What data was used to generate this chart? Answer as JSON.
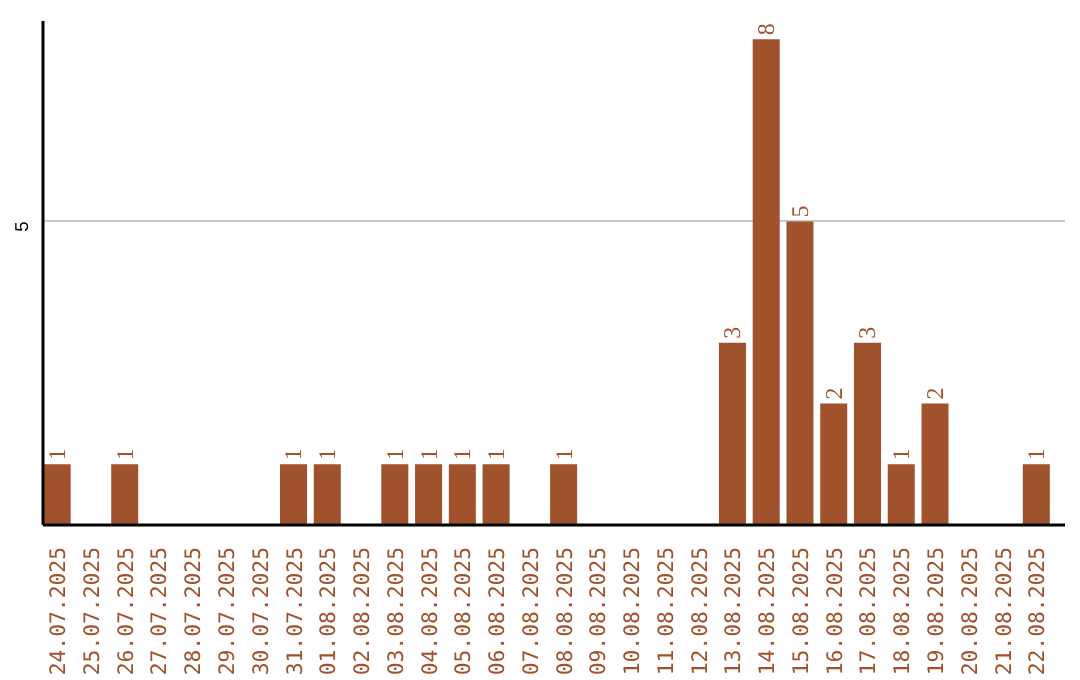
{
  "chart_data": {
    "type": "bar",
    "categories": [
      "24.07.2025",
      "25.07.2025",
      "26.07.2025",
      "27.07.2025",
      "28.07.2025",
      "29.07.2025",
      "30.07.2025",
      "31.07.2025",
      "01.08.2025",
      "02.08.2025",
      "03.08.2025",
      "04.08.2025",
      "05.08.2025",
      "06.08.2025",
      "07.08.2025",
      "08.08.2025",
      "09.08.2025",
      "10.08.2025",
      "11.08.2025",
      "12.08.2025",
      "13.08.2025",
      "14.08.2025",
      "15.08.2025",
      "16.08.2025",
      "17.08.2025",
      "18.08.2025",
      "19.08.2025",
      "20.08.2025",
      "21.08.2025",
      "22.08.2025"
    ],
    "values": [
      1,
      null,
      1,
      null,
      null,
      null,
      null,
      1,
      1,
      null,
      1,
      1,
      1,
      1,
      null,
      1,
      null,
      null,
      null,
      null,
      3,
      8,
      5,
      2,
      3,
      1,
      2,
      null,
      null,
      1
    ],
    "color": "#a0522d",
    "ylim": [
      0,
      8.3
    ],
    "yticks": [
      5
    ],
    "grid": "y",
    "data_labels": true
  }
}
